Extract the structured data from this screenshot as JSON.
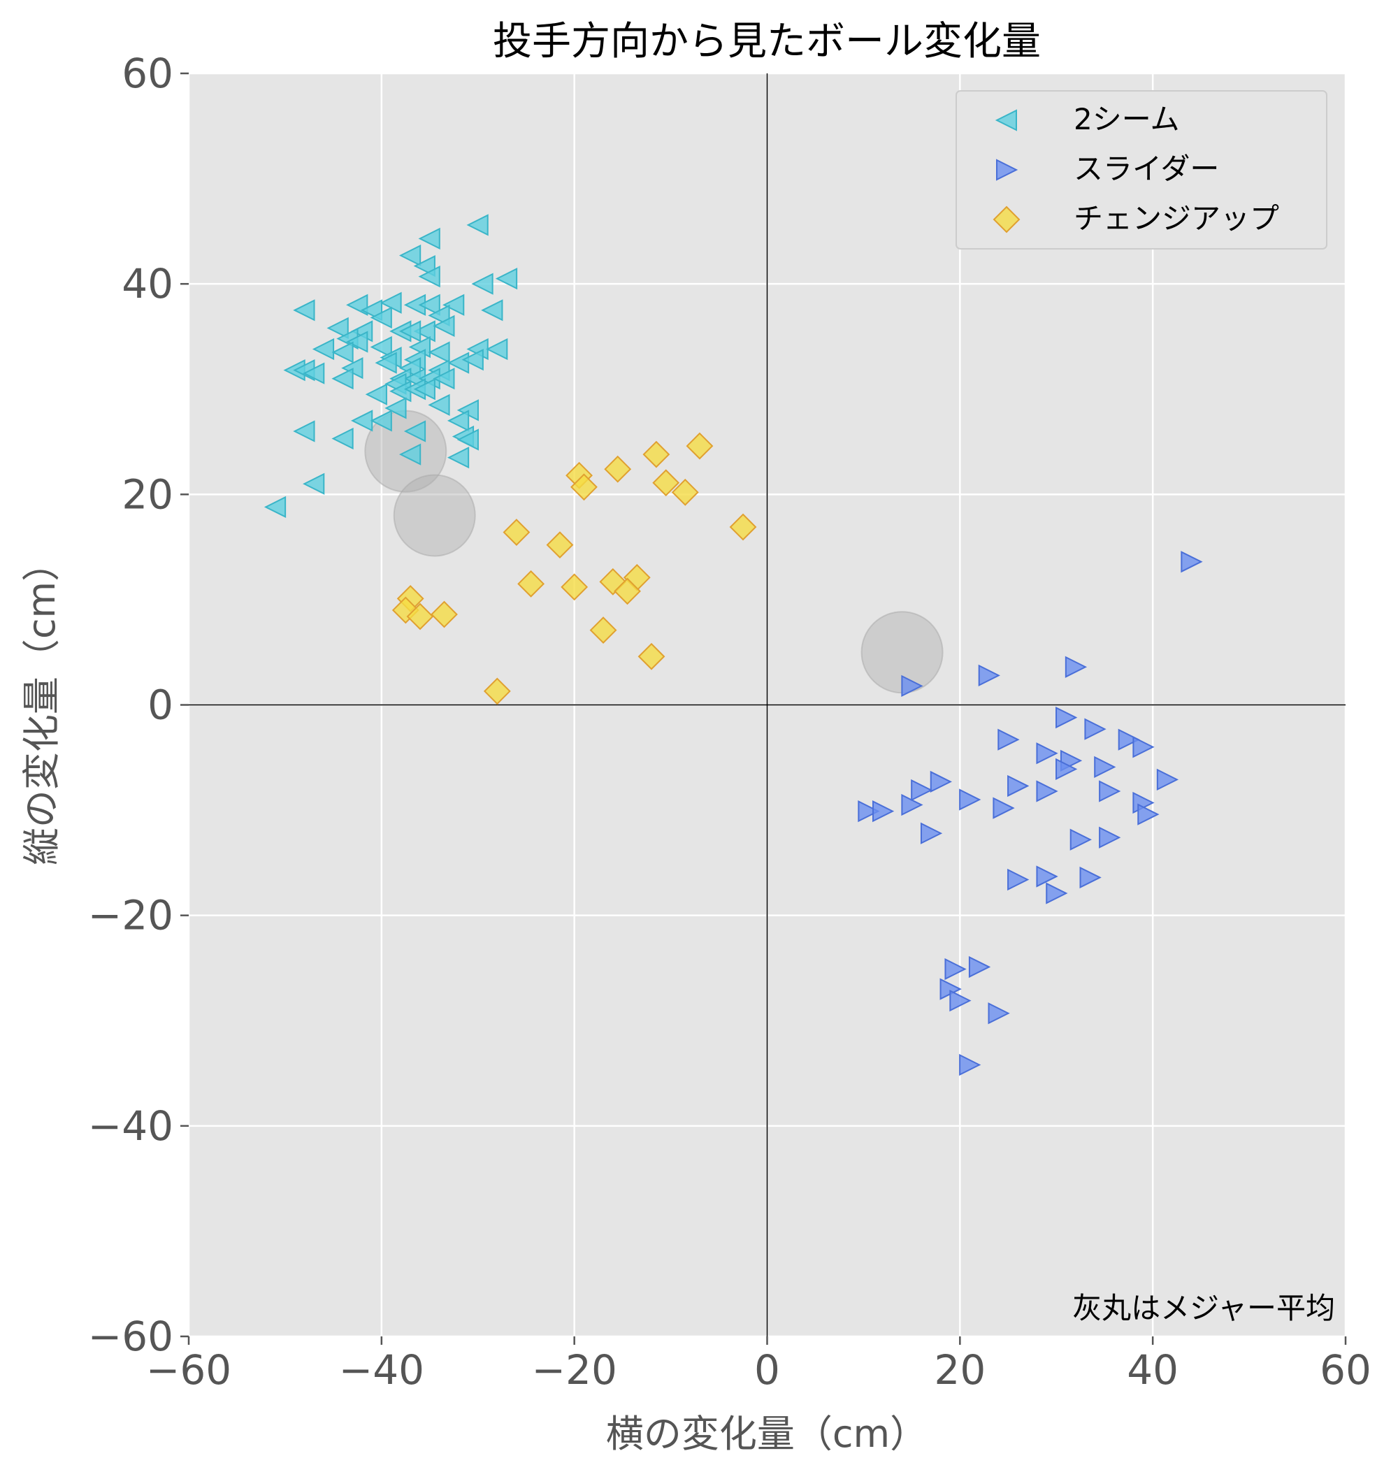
{
  "chart_data": {
    "type": "scatter",
    "title": "投手方向から見たボール変化量",
    "xlabel": "横の変化量（cm）",
    "ylabel": "縦の変化量（cm）",
    "xlim": [
      -60,
      60
    ],
    "ylim": [
      -60,
      60
    ],
    "xticks": [
      -60,
      -40,
      -20,
      0,
      20,
      40,
      60
    ],
    "yticks": [
      -60,
      -40,
      -20,
      0,
      20,
      40,
      60
    ],
    "xtick_labels": [
      "−60",
      "−40",
      "−20",
      "0",
      "20",
      "40",
      "60"
    ],
    "ytick_labels": [
      "−60",
      "−40",
      "−20",
      "0",
      "20",
      "40",
      "60"
    ],
    "grid": true,
    "background": "#e5e5e5",
    "legend_position": "top-right",
    "annotation": "灰丸はメジャー平均",
    "series": [
      {
        "name": "2シーム",
        "marker": "triangle-left",
        "color": "#5fd0e0",
        "edge": "#3ab5c8",
        "points": [
          [
            -30,
            45.6
          ],
          [
            -35,
            44.3
          ],
          [
            -37,
            42.7
          ],
          [
            -35.5,
            41.7
          ],
          [
            -35,
            40.7
          ],
          [
            -29.5,
            40
          ],
          [
            -27,
            40.5
          ],
          [
            -48,
            37.5
          ],
          [
            -42.5,
            38
          ],
          [
            -39,
            38.2
          ],
          [
            -36.5,
            38
          ],
          [
            -35,
            38
          ],
          [
            -32.5,
            38
          ],
          [
            -34,
            37
          ],
          [
            -28.5,
            37.5
          ],
          [
            -41,
            37.5
          ],
          [
            -40,
            36.8
          ],
          [
            -44.5,
            35.8
          ],
          [
            -42,
            35.5
          ],
          [
            -38,
            35.5
          ],
          [
            -35.5,
            35.5
          ],
          [
            -33.5,
            36
          ],
          [
            -37,
            35.5
          ],
          [
            -43.5,
            34.8
          ],
          [
            -42.5,
            34.5
          ],
          [
            -46,
            33.8
          ],
          [
            -40,
            34
          ],
          [
            -36,
            34
          ],
          [
            -34,
            33.5
          ],
          [
            -30,
            33.8
          ],
          [
            -28,
            33.8
          ],
          [
            -44,
            33.5
          ],
          [
            -39,
            33
          ],
          [
            -36.5,
            32.8
          ],
          [
            -32,
            32.5
          ],
          [
            -30.5,
            32.8
          ],
          [
            -39.5,
            32.5
          ],
          [
            -37,
            32
          ],
          [
            -49,
            31.8
          ],
          [
            -48,
            31.8
          ],
          [
            -47,
            31.5
          ],
          [
            -43,
            32
          ],
          [
            -34,
            31.8
          ],
          [
            -44,
            31
          ],
          [
            -38,
            31
          ],
          [
            -36.5,
            31
          ],
          [
            -35,
            31
          ],
          [
            -33.5,
            31
          ],
          [
            -38.5,
            30.5
          ],
          [
            -40.5,
            29.5
          ],
          [
            -38,
            29.8
          ],
          [
            -36.5,
            30
          ],
          [
            -35.5,
            30
          ],
          [
            -34,
            28.5
          ],
          [
            -31,
            28
          ],
          [
            -38.5,
            28.2
          ],
          [
            -42,
            27
          ],
          [
            -40,
            27
          ],
          [
            -32,
            27
          ],
          [
            -31.5,
            25.5
          ],
          [
            -31,
            25.2
          ],
          [
            -48,
            26
          ],
          [
            -44,
            25.3
          ],
          [
            -36.5,
            26
          ],
          [
            -37,
            23.8
          ],
          [
            -32,
            23.5
          ],
          [
            -47,
            21
          ],
          [
            -51,
            18.8
          ]
        ]
      },
      {
        "name": "スライダー",
        "marker": "triangle-right",
        "color": "#6a8ff0",
        "edge": "#4a6fd8",
        "points": [
          [
            44,
            13.6
          ],
          [
            15,
            1.8
          ],
          [
            23,
            2.8
          ],
          [
            32,
            3.6
          ],
          [
            31,
            -1.2
          ],
          [
            34,
            -2.3
          ],
          [
            25,
            -3.3
          ],
          [
            37.5,
            -3.3
          ],
          [
            39,
            -4
          ],
          [
            29,
            -4.6
          ],
          [
            31.5,
            -5.3
          ],
          [
            31,
            -6.1
          ],
          [
            35,
            -5.9
          ],
          [
            41.5,
            -7.1
          ],
          [
            18,
            -7.3
          ],
          [
            16,
            -8.1
          ],
          [
            26,
            -7.7
          ],
          [
            35.5,
            -8.2
          ],
          [
            29,
            -8.2
          ],
          [
            39,
            -9.3
          ],
          [
            21,
            -9
          ],
          [
            15,
            -9.5
          ],
          [
            24.5,
            -9.8
          ],
          [
            10.5,
            -10.1
          ],
          [
            12,
            -10.1
          ],
          [
            39.5,
            -10.4
          ],
          [
            17,
            -12.2
          ],
          [
            32.5,
            -12.8
          ],
          [
            35.5,
            -12.6
          ],
          [
            26,
            -16.6
          ],
          [
            29,
            -16.3
          ],
          [
            33.5,
            -16.4
          ],
          [
            30,
            -17.9
          ],
          [
            19.5,
            -25.1
          ],
          [
            22,
            -24.9
          ],
          [
            19,
            -27
          ],
          [
            20,
            -28.1
          ],
          [
            24,
            -29.3
          ],
          [
            21,
            -34.2
          ]
        ]
      },
      {
        "name": "チェンジアップ",
        "marker": "diamond",
        "color": "#f5dc45",
        "edge": "#e0a030",
        "points": [
          [
            -7,
            24.6
          ],
          [
            -11.5,
            23.8
          ],
          [
            -15.5,
            22.4
          ],
          [
            -19.5,
            21.8
          ],
          [
            -19,
            20.7
          ],
          [
            -10.5,
            21.1
          ],
          [
            -8.5,
            20.2
          ],
          [
            -2.5,
            16.9
          ],
          [
            -26,
            16.4
          ],
          [
            -21.5,
            15.2
          ],
          [
            -24.5,
            11.5
          ],
          [
            -20,
            11.2
          ],
          [
            -16,
            11.7
          ],
          [
            -13.5,
            12.1
          ],
          [
            -14.5,
            10.8
          ],
          [
            -37,
            10.1
          ],
          [
            -37.5,
            9
          ],
          [
            -36,
            8.4
          ],
          [
            -33.5,
            8.6
          ],
          [
            -17,
            7.1
          ],
          [
            -12,
            4.6
          ],
          [
            -28,
            1.3
          ]
        ]
      }
    ],
    "league_average_circles": [
      [
        -37.5,
        24.1
      ],
      [
        -34.5,
        18
      ],
      [
        14,
        5
      ]
    ]
  }
}
